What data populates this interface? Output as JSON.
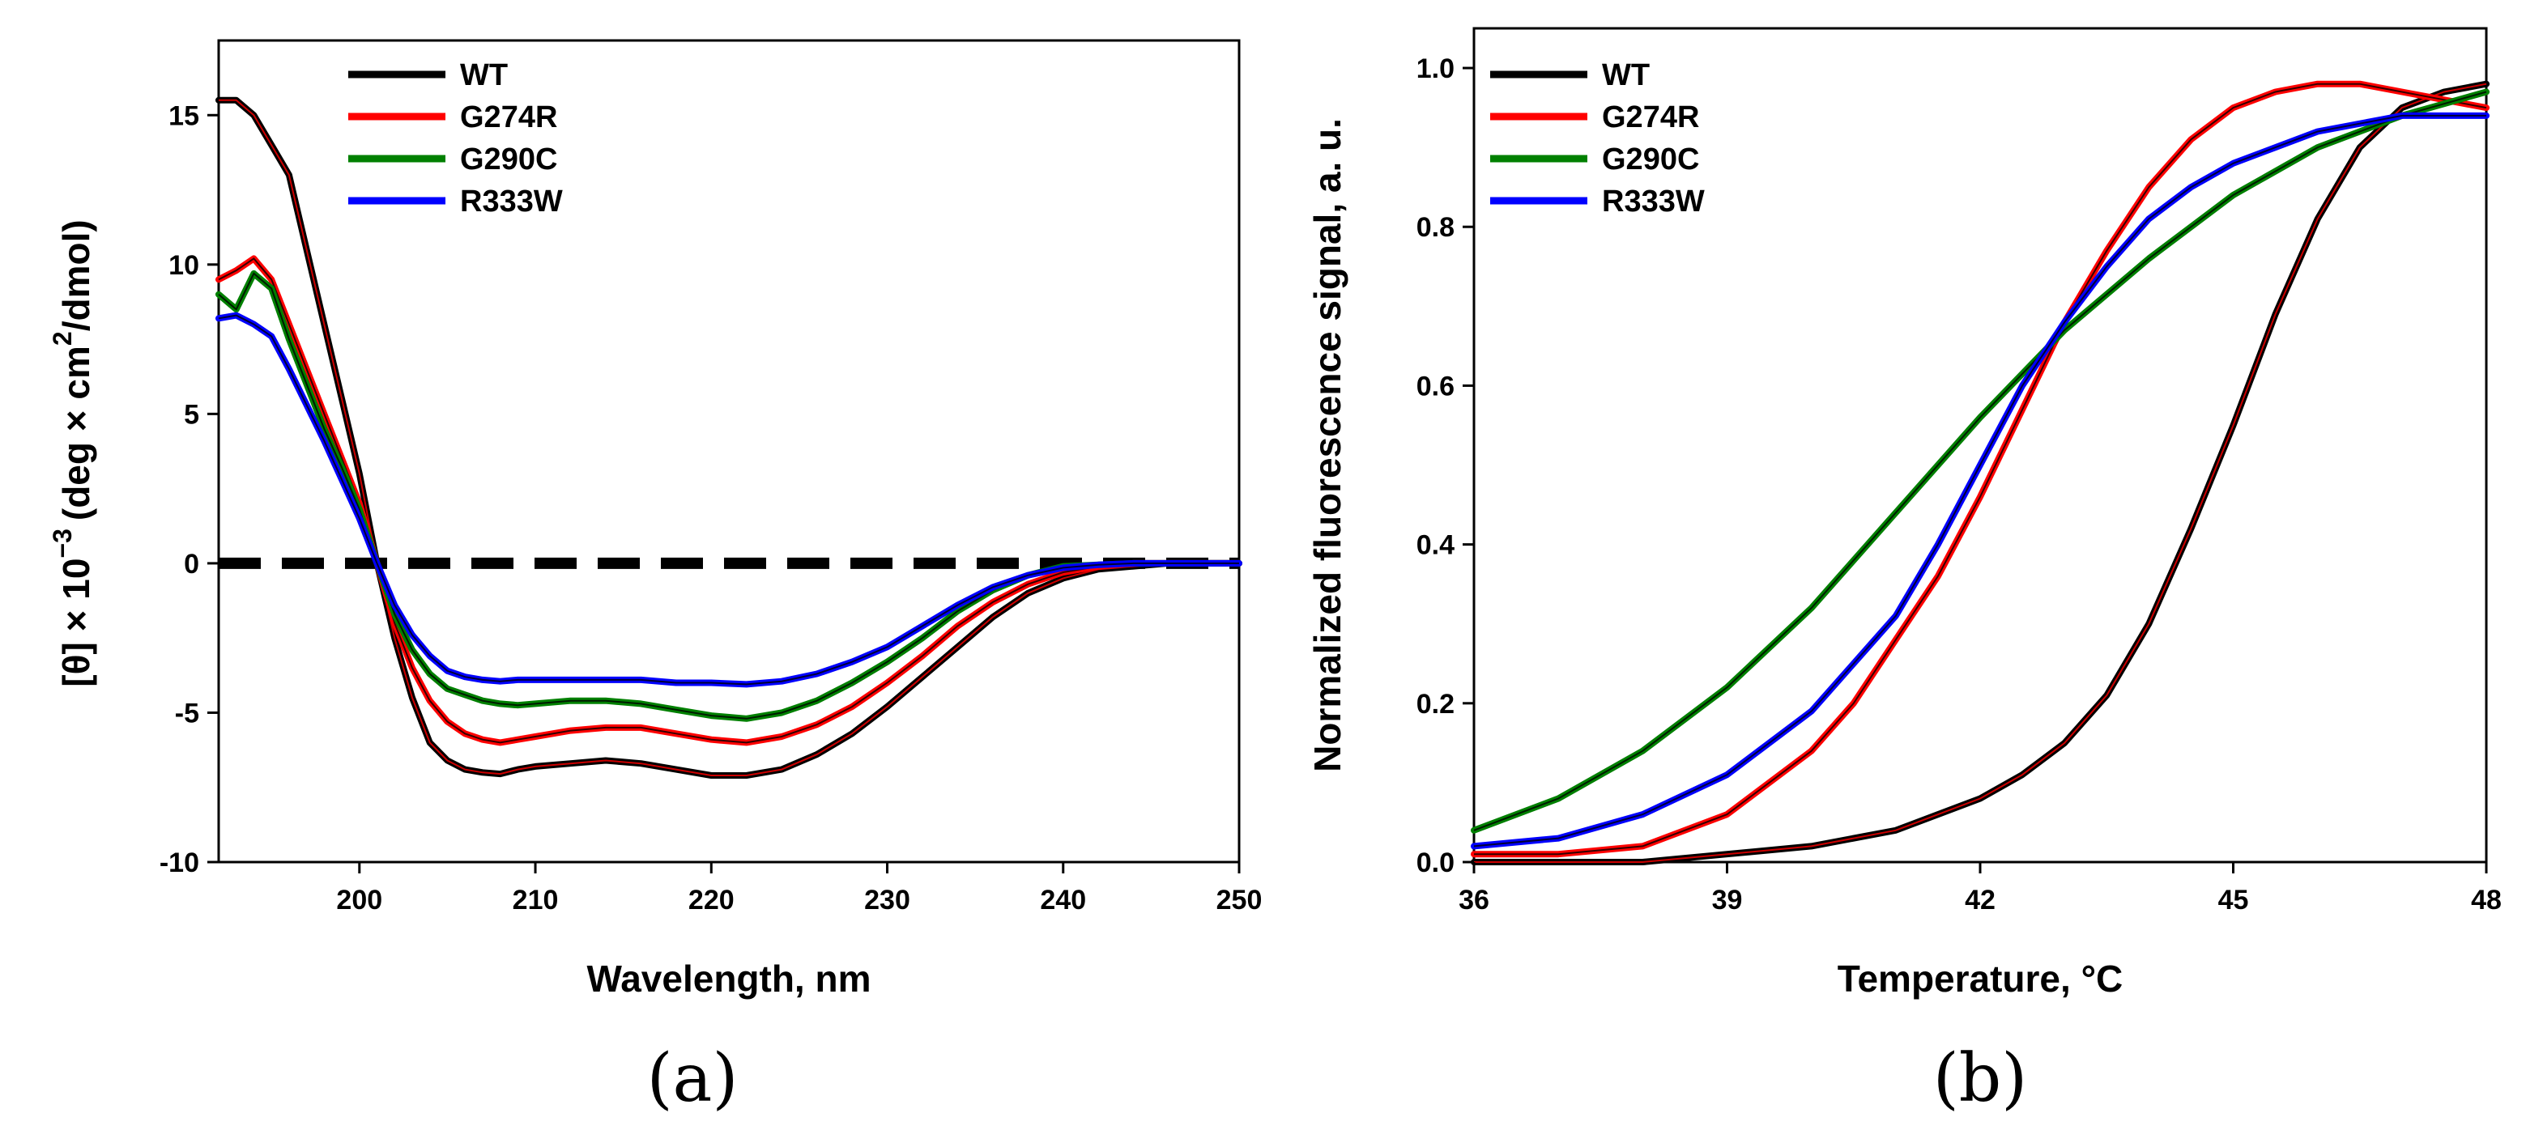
{
  "chart_data": [
    {
      "type": "line",
      "panel_label": "(a)",
      "xlabel": "Wavelength, nm",
      "ylabel": {
        "pre": "[θ] × 10",
        "exp": "−3",
        "unit_pre": "(deg × cm",
        "unit_exp": "2",
        "unit_post": "/dmol)"
      },
      "xlim": [
        192,
        250
      ],
      "ylim": [
        -10,
        17.5
      ],
      "xticks": [
        200,
        210,
        220,
        230,
        240,
        250
      ],
      "yticks": [
        -10,
        -5,
        0,
        5,
        10,
        15
      ],
      "zero_line": {
        "y": 0,
        "style": "dashed"
      },
      "legend_position": "top-left",
      "series": [
        {
          "name": "WT",
          "color": "#000000",
          "x": [
            192,
            193,
            194,
            195,
            196,
            197,
            198,
            199,
            200,
            201,
            202,
            203,
            204,
            205,
            206,
            207,
            208,
            209,
            210,
            212,
            214,
            216,
            218,
            220,
            222,
            224,
            226,
            228,
            230,
            232,
            234,
            236,
            238,
            240,
            242,
            244,
            246,
            248,
            250
          ],
          "y": [
            15.5,
            15.5,
            15.0,
            14.0,
            13.0,
            10.5,
            8.0,
            5.5,
            3.0,
            0.0,
            -2.5,
            -4.5,
            -6.0,
            -6.6,
            -6.9,
            -7.0,
            -7.05,
            -6.9,
            -6.8,
            -6.7,
            -6.6,
            -6.7,
            -6.9,
            -7.1,
            -7.1,
            -6.9,
            -6.4,
            -5.7,
            -4.8,
            -3.8,
            -2.8,
            -1.8,
            -1.0,
            -0.5,
            -0.2,
            -0.1,
            0.0,
            0.0,
            0.0
          ]
        },
        {
          "name": "G274R",
          "color": "#ff0000",
          "x": [
            192,
            193,
            194,
            195,
            196,
            197,
            198,
            199,
            200,
            201,
            202,
            203,
            204,
            205,
            206,
            207,
            208,
            209,
            210,
            212,
            214,
            216,
            218,
            220,
            222,
            224,
            226,
            228,
            230,
            232,
            234,
            236,
            238,
            240,
            242,
            244,
            246,
            248,
            250
          ],
          "y": [
            9.5,
            9.8,
            10.2,
            9.5,
            8.0,
            6.5,
            5.0,
            3.5,
            2.0,
            0.0,
            -2.0,
            -3.5,
            -4.6,
            -5.3,
            -5.7,
            -5.9,
            -6.0,
            -5.9,
            -5.8,
            -5.6,
            -5.5,
            -5.5,
            -5.7,
            -5.9,
            -6.0,
            -5.8,
            -5.4,
            -4.8,
            -4.0,
            -3.1,
            -2.1,
            -1.3,
            -0.7,
            -0.3,
            -0.1,
            0.0,
            0.0,
            0.0,
            0.0
          ]
        },
        {
          "name": "G290C",
          "color": "#008000",
          "x": [
            192,
            193,
            194,
            195,
            196,
            197,
            198,
            199,
            200,
            201,
            202,
            203,
            204,
            205,
            206,
            207,
            208,
            209,
            210,
            212,
            214,
            216,
            218,
            220,
            222,
            224,
            226,
            228,
            230,
            232,
            234,
            236,
            238,
            240,
            242,
            244,
            246,
            248,
            250
          ],
          "y": [
            9.0,
            8.5,
            9.7,
            9.2,
            7.5,
            6.0,
            4.5,
            3.2,
            1.8,
            0.0,
            -1.7,
            -2.9,
            -3.7,
            -4.2,
            -4.4,
            -4.6,
            -4.7,
            -4.75,
            -4.7,
            -4.6,
            -4.6,
            -4.7,
            -4.9,
            -5.1,
            -5.2,
            -5.0,
            -4.6,
            -4.0,
            -3.3,
            -2.5,
            -1.6,
            -0.9,
            -0.4,
            -0.1,
            -0.05,
            0.0,
            0.0,
            0.0,
            0.0
          ]
        },
        {
          "name": "R333W",
          "color": "#0000ff",
          "x": [
            192,
            193,
            194,
            195,
            196,
            197,
            198,
            199,
            200,
            201,
            202,
            203,
            204,
            205,
            206,
            207,
            208,
            209,
            210,
            212,
            214,
            216,
            218,
            220,
            222,
            224,
            226,
            228,
            230,
            232,
            234,
            236,
            238,
            240,
            242,
            244,
            246,
            248,
            250
          ],
          "y": [
            8.2,
            8.3,
            8.0,
            7.6,
            6.5,
            5.3,
            4.1,
            2.8,
            1.5,
            0.0,
            -1.4,
            -2.4,
            -3.1,
            -3.6,
            -3.8,
            -3.9,
            -3.95,
            -3.9,
            -3.9,
            -3.9,
            -3.9,
            -3.9,
            -4.0,
            -4.0,
            -4.05,
            -3.95,
            -3.7,
            -3.3,
            -2.8,
            -2.1,
            -1.4,
            -0.8,
            -0.4,
            -0.15,
            -0.05,
            0.0,
            0.0,
            0.0,
            0.0
          ]
        }
      ]
    },
    {
      "type": "line",
      "panel_label": "(b)",
      "xlabel": "Temperature, °C",
      "ylabel": "Normalized fluorescence signal, a. u.",
      "xlim": [
        36,
        48
      ],
      "ylim": [
        0,
        1.05
      ],
      "xticks": [
        36,
        39,
        42,
        45,
        48
      ],
      "yticks": [
        0.0,
        0.2,
        0.4,
        0.6,
        0.8,
        1.0
      ],
      "ytick_labels": [
        "0.0",
        "0.2",
        "0.4",
        "0.6",
        "0.8",
        "1.0"
      ],
      "legend_position": "top-left",
      "series": [
        {
          "name": "WT",
          "color": "#000000",
          "x": [
            36,
            37,
            38,
            39,
            40,
            41,
            42,
            42.5,
            43,
            43.5,
            44,
            44.5,
            45,
            45.5,
            46,
            46.5,
            47,
            47.5,
            48
          ],
          "y": [
            0.0,
            0.0,
            0.0,
            0.01,
            0.02,
            0.04,
            0.08,
            0.11,
            0.15,
            0.21,
            0.3,
            0.42,
            0.55,
            0.69,
            0.81,
            0.9,
            0.95,
            0.97,
            0.98
          ]
        },
        {
          "name": "G274R",
          "color": "#ff0000",
          "x": [
            36,
            37,
            38,
            39,
            40,
            40.5,
            41,
            41.5,
            42,
            42.5,
            43,
            43.5,
            44,
            44.5,
            45,
            45.5,
            46,
            46.5,
            47,
            47.5,
            48
          ],
          "y": [
            0.01,
            0.01,
            0.02,
            0.06,
            0.14,
            0.2,
            0.28,
            0.36,
            0.46,
            0.57,
            0.68,
            0.77,
            0.85,
            0.91,
            0.95,
            0.97,
            0.98,
            0.98,
            0.97,
            0.96,
            0.95
          ]
        },
        {
          "name": "G290C",
          "color": "#008000",
          "x": [
            36,
            37,
            38,
            39,
            40,
            41,
            42,
            43,
            44,
            45,
            46,
            47,
            48
          ],
          "y": [
            0.04,
            0.08,
            0.14,
            0.22,
            0.32,
            0.44,
            0.56,
            0.67,
            0.76,
            0.84,
            0.9,
            0.94,
            0.97
          ]
        },
        {
          "name": "R333W",
          "color": "#0000ff",
          "x": [
            36,
            37,
            38,
            39,
            40,
            41,
            41.5,
            42,
            42.5,
            43,
            43.5,
            44,
            44.5,
            45,
            45.5,
            46,
            47,
            48
          ],
          "y": [
            0.02,
            0.03,
            0.06,
            0.11,
            0.19,
            0.31,
            0.4,
            0.5,
            0.6,
            0.68,
            0.75,
            0.81,
            0.85,
            0.88,
            0.9,
            0.92,
            0.94,
            0.94
          ]
        }
      ]
    }
  ]
}
